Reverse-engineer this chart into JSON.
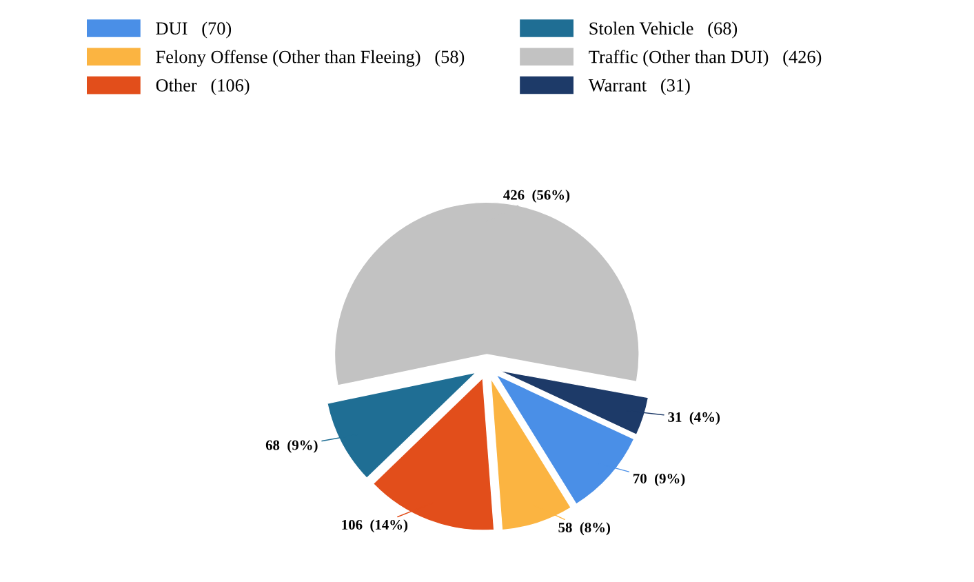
{
  "chart_data": {
    "type": "pie",
    "categories": [
      "DUI   (70)",
      "Felony Offense (Other than Fleeing)   (58)",
      "Other   (106)",
      "Stolen Vehicle   (68)",
      "Traffic (Other than DUI)   (426)",
      "Warrant   (31)"
    ],
    "values": [
      70,
      58,
      106,
      68,
      426,
      31
    ],
    "colors": [
      "#4a8fe7",
      "#fbb441",
      "#e24e1b",
      "#1f6e94",
      "#c2c2c2",
      "#1d3a68"
    ],
    "value_labels": [
      "70  (9%)",
      "58  (8%)",
      "106  (14%)",
      "68  (9%)",
      "426  (56%)",
      "31  (4%)"
    ],
    "legend": "top"
  }
}
